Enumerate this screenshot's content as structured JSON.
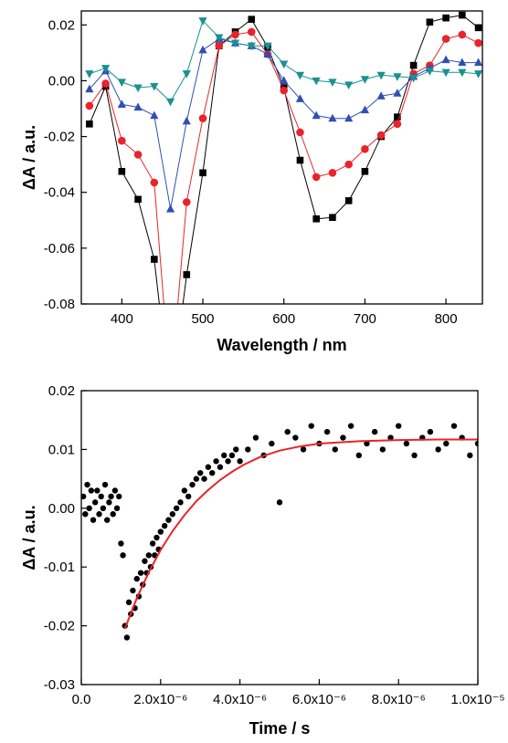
{
  "chart_data": [
    {
      "type": "line",
      "xlabel": "Wavelength / nm",
      "ylabel": "ΔA / a.u.",
      "xlim": [
        350,
        845
      ],
      "ylim": [
        -0.08,
        0.025
      ],
      "xticks": [
        400,
        500,
        600,
        700,
        800
      ],
      "yticks": [
        -0.08,
        -0.06,
        -0.04,
        -0.02,
        0.0,
        0.02
      ],
      "ytick_labels": [
        "-0.08",
        "-0.06",
        "-0.04",
        "-0.02",
        "0.00",
        "0.02"
      ],
      "x": [
        360,
        380,
        400,
        420,
        440,
        460,
        480,
        500,
        520,
        540,
        560,
        580,
        600,
        620,
        640,
        660,
        680,
        700,
        720,
        740,
        760,
        780,
        800,
        820,
        840
      ],
      "series": [
        {
          "marker": "square",
          "color": "#000000",
          "values": [
            -0.0155,
            -0.002,
            -0.0325,
            -0.0425,
            -0.064,
            -0.115,
            -0.0695,
            -0.033,
            0.0125,
            0.0175,
            0.022,
            0.012,
            -0.0025,
            -0.0285,
            -0.0495,
            -0.049,
            -0.043,
            -0.0325,
            -0.02,
            -0.013,
            0.0055,
            0.021,
            0.0225,
            0.0235,
            0.019
          ]
        },
        {
          "marker": "circle",
          "color": "#e8242a",
          "values": [
            -0.009,
            -0.001,
            -0.0215,
            -0.0265,
            -0.0365,
            -0.11,
            -0.0435,
            -0.0135,
            0.0125,
            0.0165,
            0.0175,
            0.0095,
            -0.0035,
            -0.0185,
            -0.0345,
            -0.033,
            -0.03,
            -0.0245,
            -0.0195,
            -0.0155,
            0.0025,
            0.0055,
            0.015,
            0.0165,
            0.0135
          ]
        },
        {
          "marker": "triangle-up",
          "color": "#2f4fb3",
          "values": [
            -0.003,
            0.0035,
            -0.0085,
            -0.0095,
            -0.0125,
            -0.046,
            -0.0145,
            0.011,
            0.015,
            0.0135,
            0.0125,
            0.0095,
            0.0,
            -0.0065,
            -0.0125,
            -0.0135,
            -0.0135,
            -0.0105,
            -0.0055,
            -0.0045,
            0.0015,
            0.0045,
            0.0075,
            0.0065,
            0.0065
          ]
        },
        {
          "marker": "triangle-down",
          "color": "#1a9191",
          "values": [
            0.0025,
            0.0045,
            -0.0005,
            -0.0025,
            -0.002,
            -0.0075,
            0.0025,
            0.0215,
            0.0155,
            0.0135,
            0.0125,
            0.0125,
            0.006,
            0.002,
            0.0,
            -0.0005,
            -0.0015,
            0.0005,
            0.002,
            0.0015,
            0.001,
            0.0035,
            0.003,
            0.003,
            0.0025
          ]
        }
      ]
    },
    {
      "type": "scatter",
      "xlabel": "Time / s",
      "ylabel": "ΔA / a.u.",
      "xlim": [
        0,
        1e-05
      ],
      "ylim": [
        -0.03,
        0.02
      ],
      "xticks": [
        0,
        2e-06,
        4e-06,
        6e-06,
        8e-06,
        1e-05
      ],
      "xtick_labels": [
        "0.0",
        "2.0x10⁻⁶",
        "4.0x10⁻⁶",
        "6.0x10⁻⁶",
        "8.0x10⁻⁶",
        "1.0x10⁻⁵"
      ],
      "yticks": [
        -0.03,
        -0.02,
        -0.01,
        0.0,
        0.01,
        0.02
      ],
      "ytick_labels": [
        "-0.03",
        "-0.02",
        "-0.01",
        "0.00",
        "0.01",
        "0.02"
      ],
      "series": [
        {
          "name": "",
          "color": "#000000",
          "marker": "circle",
          "x": [
            5e-08,
            1e-07,
            1.5e-07,
            2e-07,
            2.5e-07,
            3e-07,
            3.5e-07,
            4e-07,
            4.5e-07,
            5e-07,
            5.5e-07,
            6e-07,
            6.5e-07,
            7e-07,
            7.5e-07,
            8e-07,
            8.5e-07,
            9e-07,
            9.5e-07,
            1e-06,
            1.05e-06,
            1.1e-06,
            1.15e-06,
            1.2e-06,
            1.25e-06,
            1.3e-06,
            1.35e-06,
            1.4e-06,
            1.45e-06,
            1.5e-06,
            1.55e-06,
            1.6e-06,
            1.65e-06,
            1.7e-06,
            1.75e-06,
            1.8e-06,
            1.85e-06,
            1.9e-06,
            1.95e-06,
            2e-06,
            2.1e-06,
            2.2e-06,
            2.3e-06,
            2.4e-06,
            2.5e-06,
            2.6e-06,
            2.7e-06,
            2.8e-06,
            2.9e-06,
            3e-06,
            3.1e-06,
            3.2e-06,
            3.3e-06,
            3.4e-06,
            3.5e-06,
            3.6e-06,
            3.7e-06,
            3.8e-06,
            3.9e-06,
            4e-06,
            4.2e-06,
            4.4e-06,
            4.6e-06,
            4.8e-06,
            5e-06,
            5.2e-06,
            5.4e-06,
            5.6e-06,
            5.8e-06,
            6e-06,
            6.2e-06,
            6.4e-06,
            6.6e-06,
            6.8e-06,
            7e-06,
            7.2e-06,
            7.4e-06,
            7.6e-06,
            7.8e-06,
            8e-06,
            8.2e-06,
            8.4e-06,
            8.6e-06,
            8.8e-06,
            9e-06,
            9.2e-06,
            9.4e-06,
            9.6e-06,
            9.8e-06,
            1e-05
          ],
          "y": [
            0.002,
            -0.001,
            0.004,
            0.0,
            0.003,
            -0.002,
            0.001,
            0.003,
            -0.001,
            0.002,
            0.0,
            0.004,
            -0.002,
            0.001,
            0.002,
            -0.001,
            0.003,
            0.0,
            0.002,
            -0.006,
            -0.008,
            -0.02,
            -0.022,
            -0.016,
            -0.018,
            -0.014,
            -0.017,
            -0.012,
            -0.015,
            -0.011,
            -0.013,
            -0.009,
            -0.011,
            -0.008,
            -0.01,
            -0.006,
            -0.008,
            -0.005,
            -0.007,
            -0.004,
            -0.003,
            -0.002,
            -0.001,
            0.0,
            0.001,
            0.003,
            0.002,
            0.004,
            0.005,
            0.006,
            0.005,
            0.007,
            0.006,
            0.008,
            0.007,
            0.009,
            0.008,
            0.009,
            0.01,
            0.008,
            0.01,
            0.012,
            0.009,
            0.011,
            0.001,
            0.013,
            0.012,
            0.01,
            0.014,
            0.011,
            0.013,
            0.01,
            0.012,
            0.014,
            0.009,
            0.011,
            0.013,
            0.01,
            0.012,
            0.014,
            0.011,
            0.009,
            0.012,
            0.013,
            0.01,
            0.011,
            0.014,
            0.012,
            0.009,
            0.011
          ]
        },
        {
          "name": "",
          "color": "#e8242a",
          "type": "fit",
          "x": [
            1.1e-06,
            1.4e-06,
            1.7e-06,
            2e-06,
            2.3e-06,
            2.6e-06,
            2.9e-06,
            3.2e-06,
            3.5e-06,
            3.8e-06,
            4.1e-06,
            4.5e-06,
            5e-06,
            5.5e-06,
            6e-06,
            7e-06,
            8e-06,
            9e-06,
            1e-05
          ],
          "y": [
            -0.0205,
            -0.0153,
            -0.0109,
            -0.0071,
            -0.0039,
            -0.0012,
            0.0012,
            0.0031,
            0.0048,
            0.0062,
            0.0074,
            0.0087,
            0.0098,
            0.0105,
            0.011,
            0.0114,
            0.0116,
            0.0117,
            0.0117
          ]
        }
      ]
    }
  ]
}
